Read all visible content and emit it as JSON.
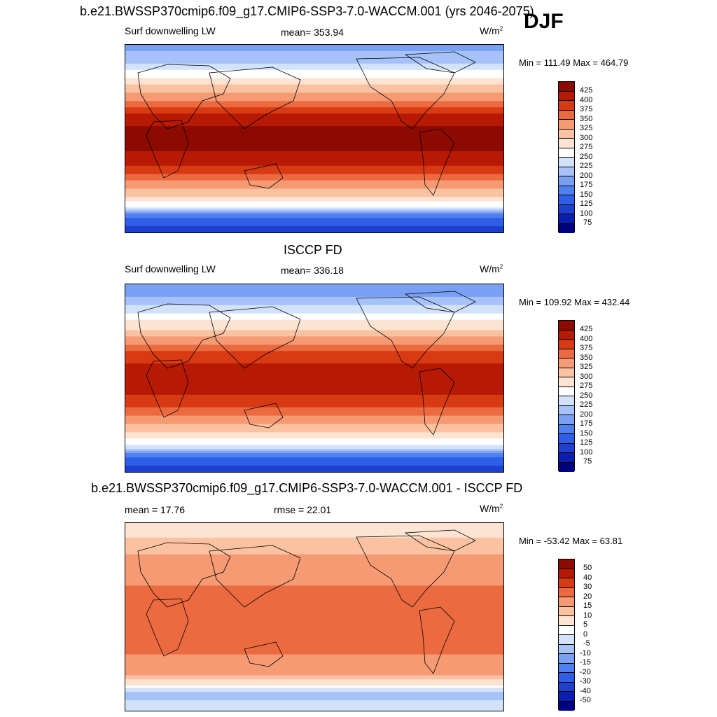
{
  "header": {
    "title": "b.e21.BWSSP370cmip6.f09_g17.CMIP6-SSP3-7.0-WACCM.001 (yrs 2046-2075)",
    "season": "DJF"
  },
  "panels": [
    {
      "variable": "Surf downwelling LW",
      "stat": "mean= 353.94",
      "units": "W/m",
      "units_sup": "2",
      "minmax": "Min = 111.49 Max = 464.79"
    },
    {
      "title": "ISCCP FD",
      "variable": "Surf downwelling LW",
      "stat": "mean= 336.18",
      "units": "W/m",
      "units_sup": "2",
      "minmax": "Min = 109.92 Max = 432.44"
    },
    {
      "title": "b.e21.BWSSP370cmip6.f09_g17.CMIP6-SSP3-7.0-WACCM.001 - ISCCP FD",
      "variable": "mean =  17.76",
      "stat": "rmse =  22.01",
      "units": "W/m",
      "units_sup": "2",
      "minmax": "Min = -53.42 Max =  63.81"
    }
  ],
  "chart_data": [
    {
      "type": "heatmap",
      "title": "b.e21.BWSSP370cmip6.f09_g17.CMIP6-SSP3-7.0-WACCM.001 (yrs 2046-2075)",
      "season": "DJF",
      "variable": "Surf downwelling LW",
      "units": "W/m^2",
      "mean": 353.94,
      "min": 111.49,
      "max": 464.79,
      "levels": [
        75,
        100,
        125,
        150,
        175,
        200,
        225,
        250,
        275,
        300,
        325,
        350,
        375,
        400,
        425
      ],
      "colors": [
        "#000080",
        "#0a1fb0",
        "#1f3fd0",
        "#2f5ee8",
        "#5080f0",
        "#7aa0f4",
        "#a6c2f8",
        "#d3e2fb",
        "#ffffff",
        "#fde4d2",
        "#fbc2a2",
        "#f69a74",
        "#ec6a40",
        "#d83a14",
        "#b71a04",
        "#8c0a00"
      ],
      "x_range": [
        0,
        360
      ],
      "y_range": [
        -90,
        90
      ],
      "zonal_profile": {
        "lat": [
          -90,
          -75,
          -65,
          -55,
          -45,
          -35,
          -25,
          -15,
          -5,
          5,
          15,
          25,
          35,
          45,
          55,
          65,
          75,
          90
        ],
        "value": [
          110,
          150,
          250,
          300,
          335,
          370,
          400,
          420,
          435,
          435,
          420,
          395,
          355,
          320,
          290,
          250,
          215,
          190
        ]
      }
    },
    {
      "type": "heatmap",
      "title": "ISCCP FD",
      "variable": "Surf downwelling LW",
      "units": "W/m^2",
      "mean": 336.18,
      "min": 109.92,
      "max": 432.44,
      "levels": [
        75,
        100,
        125,
        150,
        175,
        200,
        225,
        250,
        275,
        300,
        325,
        350,
        375,
        400,
        425
      ],
      "colors": [
        "#000080",
        "#0a1fb0",
        "#1f3fd0",
        "#2f5ee8",
        "#5080f0",
        "#7aa0f4",
        "#a6c2f8",
        "#d3e2fb",
        "#ffffff",
        "#fde4d2",
        "#fbc2a2",
        "#f69a74",
        "#ec6a40",
        "#d83a14",
        "#b71a04",
        "#8c0a00"
      ],
      "x_range": [
        0,
        360
      ],
      "y_range": [
        -90,
        90
      ],
      "zonal_profile": {
        "lat": [
          -90,
          -75,
          -65,
          -55,
          -45,
          -35,
          -25,
          -15,
          -5,
          5,
          15,
          25,
          35,
          45,
          55,
          65,
          75,
          90
        ],
        "value": [
          110,
          150,
          245,
          290,
          320,
          355,
          385,
          400,
          410,
          410,
          398,
          375,
          340,
          305,
          275,
          240,
          205,
          180
        ]
      }
    },
    {
      "type": "heatmap",
      "title": "b.e21.BWSSP370cmip6.f09_g17.CMIP6-SSP3-7.0-WACCM.001 - ISCCP FD",
      "variable": "Surf downwelling LW",
      "units": "W/m^2",
      "mean": 17.76,
      "rmse": 22.01,
      "min": -53.42,
      "max": 63.81,
      "levels": [
        -50,
        -40,
        -30,
        -20,
        -15,
        -10,
        -5,
        0,
        5,
        10,
        15,
        20,
        30,
        40,
        50
      ],
      "colors": [
        "#000080",
        "#0a1fb0",
        "#1f3fd0",
        "#2f5ee8",
        "#5080f0",
        "#7aa0f4",
        "#a6c2f8",
        "#d3e2fb",
        "#ffffff",
        "#fde4d2",
        "#fbc2a2",
        "#f69a74",
        "#ec6a40",
        "#d83a14",
        "#b71a04",
        "#8c0a00"
      ],
      "x_range": [
        0,
        360
      ],
      "y_range": [
        -90,
        90
      ],
      "zonal_profile": {
        "lat": [
          -90,
          -75,
          -65,
          -55,
          -45,
          -35,
          -25,
          -15,
          -5,
          5,
          15,
          25,
          35,
          45,
          55,
          65,
          75,
          90
        ],
        "value": [
          0,
          -8,
          5,
          15,
          18,
          20,
          22,
          25,
          28,
          28,
          25,
          22,
          18,
          15,
          16,
          14,
          10,
          8
        ]
      }
    }
  ]
}
